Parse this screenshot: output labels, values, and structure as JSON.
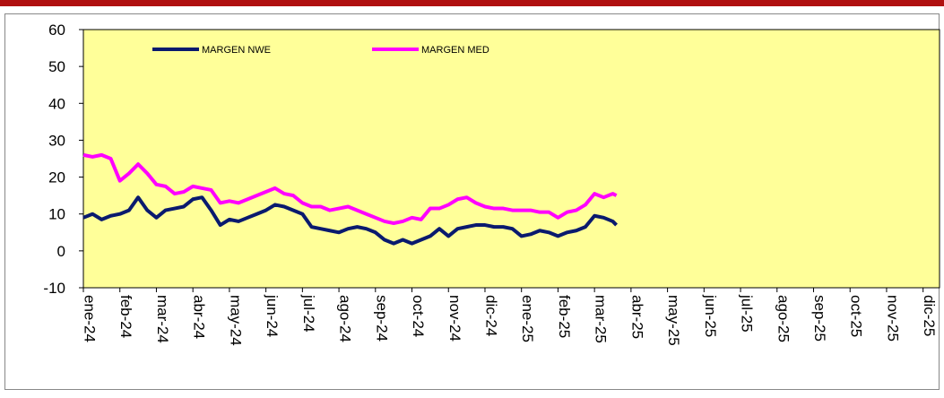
{
  "chart_data": {
    "type": "line",
    "x": [
      0,
      0.25,
      0.5,
      0.75,
      1,
      1.25,
      1.5,
      1.75,
      2,
      2.25,
      2.5,
      2.75,
      3,
      3.25,
      3.5,
      3.75,
      4,
      4.25,
      4.5,
      4.75,
      5,
      5.25,
      5.5,
      5.75,
      6,
      6.25,
      6.5,
      6.75,
      7,
      7.25,
      7.5,
      7.75,
      8,
      8.25,
      8.5,
      8.75,
      9,
      9.25,
      9.5,
      9.75,
      10,
      10.25,
      10.5,
      10.75,
      11,
      11.25,
      11.5,
      11.75,
      12,
      12.25,
      12.5,
      12.75,
      13,
      13.25,
      13.5,
      13.75,
      14,
      14.25,
      14.5,
      14.6
    ],
    "series": [
      {
        "name": "MARGEN NWE",
        "color": "#0a1a6e",
        "values": [
          9,
          10,
          8.5,
          9.5,
          10,
          11,
          14.5,
          11,
          9,
          11,
          11.5,
          12,
          14,
          14.5,
          11,
          7,
          8.5,
          8,
          9,
          10,
          11,
          12.5,
          12,
          11,
          10,
          6.5,
          6,
          5.5,
          5,
          6,
          6.5,
          6,
          5,
          3,
          2,
          3,
          2,
          3,
          4,
          6,
          4,
          6,
          6.5,
          7,
          7,
          6.5,
          6.5,
          6,
          4,
          4.5,
          5.5,
          5,
          4,
          5,
          5.5,
          6.5,
          9.5,
          9,
          8,
          7
        ]
      },
      {
        "name": "MARGEN MED",
        "color": "#ff00ff",
        "values": [
          26,
          25.5,
          26,
          25,
          19,
          21,
          23.5,
          21,
          18,
          17.5,
          15.5,
          16,
          17.5,
          17,
          16.5,
          13,
          13.5,
          13,
          14,
          15,
          16,
          17,
          15.5,
          15,
          13,
          12,
          12,
          11,
          11.5,
          12,
          11,
          10,
          9,
          8,
          7.5,
          8,
          9,
          8.5,
          11.5,
          11.5,
          12.5,
          14,
          14.5,
          13,
          12,
          11.5,
          11.5,
          11,
          11,
          11,
          10.5,
          10.5,
          9,
          10.5,
          11,
          12.5,
          15.5,
          14.5,
          15.5,
          15
        ]
      }
    ],
    "xlim": [
      0,
      23.45
    ],
    "xticks": [
      {
        "value": 0,
        "label": "ene-24"
      },
      {
        "value": 1,
        "label": "feb-24"
      },
      {
        "value": 2,
        "label": "mar-24"
      },
      {
        "value": 3,
        "label": "abr-24"
      },
      {
        "value": 4,
        "label": "may-24"
      },
      {
        "value": 5,
        "label": "jun-24"
      },
      {
        "value": 6,
        "label": "jul-24"
      },
      {
        "value": 7,
        "label": "ago-24"
      },
      {
        "value": 8,
        "label": "sep-24"
      },
      {
        "value": 9,
        "label": "oct-24"
      },
      {
        "value": 10,
        "label": "nov-24"
      },
      {
        "value": 11,
        "label": "dic-24"
      },
      {
        "value": 12,
        "label": "ene-25"
      },
      {
        "value": 13,
        "label": "feb-25"
      },
      {
        "value": 14,
        "label": "mar-25"
      },
      {
        "value": 15,
        "label": "abr-25"
      },
      {
        "value": 16,
        "label": "may-25"
      },
      {
        "value": 17,
        "label": "jun-25"
      },
      {
        "value": 18,
        "label": "jul-25"
      },
      {
        "value": 19,
        "label": "ago-25"
      },
      {
        "value": 20,
        "label": "sep-25"
      },
      {
        "value": 21,
        "label": "oct-25"
      },
      {
        "value": 22,
        "label": "nov-25"
      },
      {
        "value": 23,
        "label": "dic-25"
      }
    ],
    "ylim": [
      -10,
      60
    ],
    "yticks": [
      -10,
      0,
      10,
      20,
      30,
      40,
      50,
      60
    ],
    "grid": false,
    "background": "#ffff99"
  }
}
